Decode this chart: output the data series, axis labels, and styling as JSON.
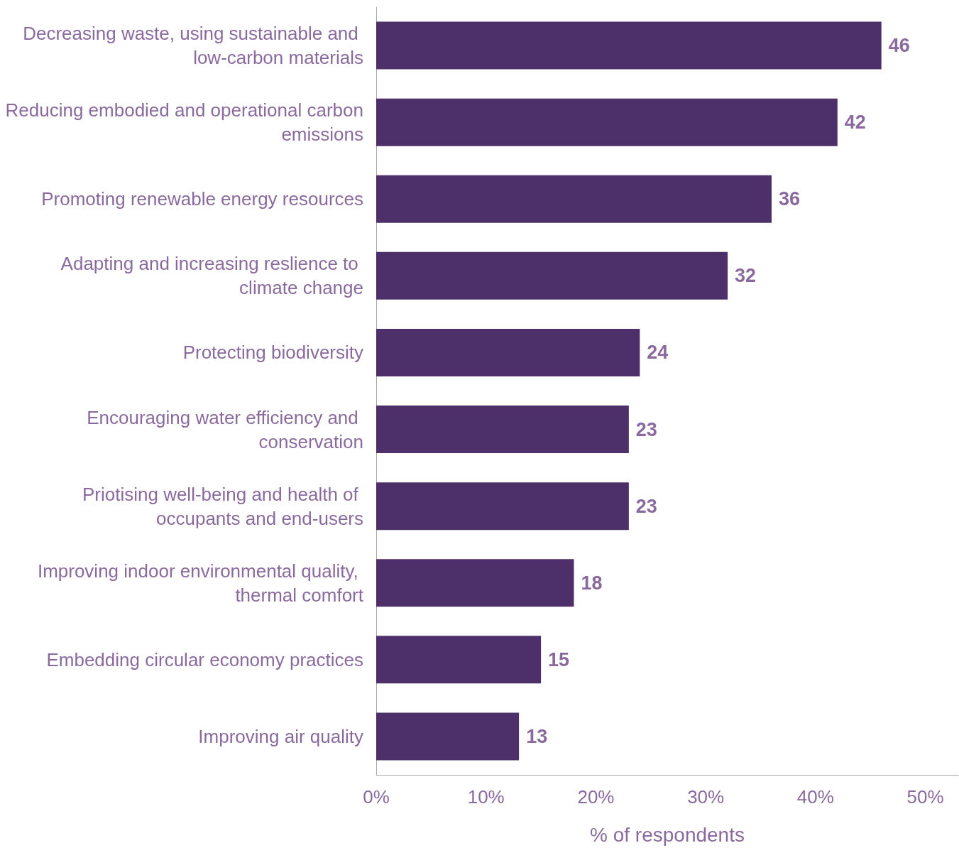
{
  "chart_data": {
    "type": "bar",
    "orientation": "horizontal",
    "xlabel": "% of respondents",
    "categories": [
      "Decreasing waste, using sustainable and low-carbon materials",
      "Reducing embodied and operational carbon emissions",
      "Promoting renewable energy resources",
      "Adapting and increasing reslience to climate change",
      "Protecting biodiversity",
      "Encouraging water efficiency and conservation",
      "Priotising well-being and health of occupants and end-users",
      "Improving indoor environmental quality, thermal comfort",
      "Embedding circular economy practices",
      "Improving air quality"
    ],
    "values": [
      46,
      42,
      36,
      32,
      24,
      23,
      23,
      18,
      15,
      13
    ],
    "color": "#4d2f6a",
    "data_labels": true,
    "grid": false,
    "xlim": [
      0,
      53
    ],
    "xticks": [
      {
        "value": 0,
        "label": "0%"
      },
      {
        "value": 10,
        "label": "10%"
      },
      {
        "value": 20,
        "label": "20%"
      },
      {
        "value": 30,
        "label": "30%"
      },
      {
        "value": 40,
        "label": "40%"
      },
      {
        "value": 50,
        "label": "50%"
      }
    ]
  }
}
